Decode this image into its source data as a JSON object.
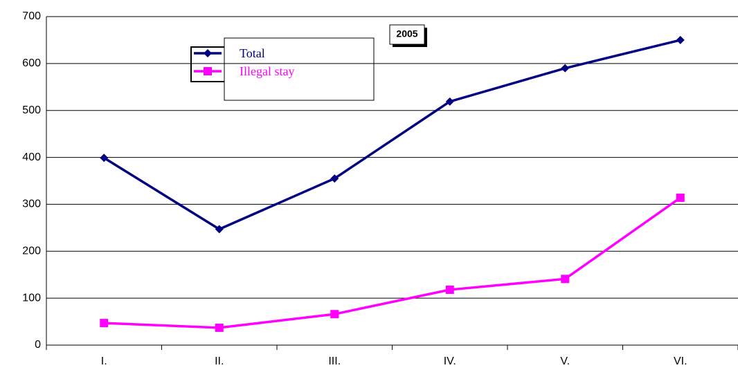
{
  "chart_data": {
    "type": "line",
    "title": "2005",
    "categories": [
      "I.",
      "II.",
      "III.",
      "IV.",
      "V.",
      "VI."
    ],
    "series": [
      {
        "name": "Total",
        "color": "#000080",
        "marker": "diamond",
        "values": [
          399,
          247,
          355,
          519,
          590,
          650
        ]
      },
      {
        "name": "Illegal stay",
        "color": "#ff00ff",
        "marker": "square",
        "values": [
          47,
          37,
          66,
          118,
          141,
          314
        ]
      }
    ],
    "ylim": [
      0,
      700
    ],
    "yticks": [
      0,
      100,
      200,
      300,
      400,
      500,
      600,
      700
    ],
    "grid": true
  }
}
